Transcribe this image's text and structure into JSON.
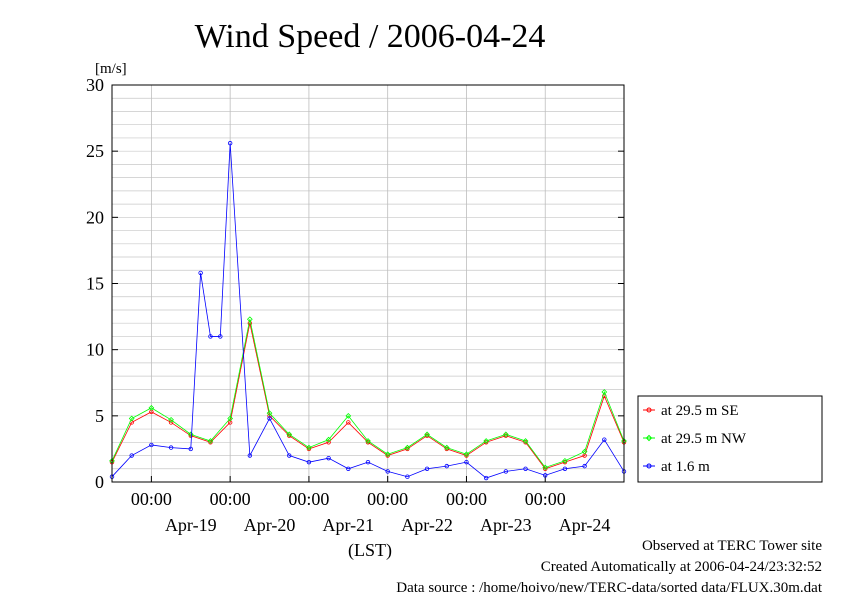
{
  "chart_data": {
    "type": "line",
    "title": "Wind Speed / 2006-04-24",
    "ylabel": "[m/s]",
    "xlabel": "(LST)",
    "ylim": [
      0,
      30
    ],
    "yticks": [
      0,
      5,
      10,
      15,
      20,
      25,
      30
    ],
    "xlim": [
      "2006-04-18T12:00",
      "2006-04-24T24:00"
    ],
    "time_tick_label": "00:00",
    "time_ticks": [
      "2006-04-19T00:00",
      "2006-04-20T00:00",
      "2006-04-21T00:00",
      "2006-04-22T00:00",
      "2006-04-23T00:00",
      "2006-04-24T00:00"
    ],
    "date_labels": [
      {
        "date": "2006-04-19T12:00",
        "label": "Apr-19"
      },
      {
        "date": "2006-04-20T12:00",
        "label": "Apr-20"
      },
      {
        "date": "2006-04-21T12:00",
        "label": "Apr-21"
      },
      {
        "date": "2006-04-22T12:00",
        "label": "Apr-22"
      },
      {
        "date": "2006-04-23T12:00",
        "label": "Apr-23"
      },
      {
        "date": "2006-04-24T12:00",
        "label": "Apr-24"
      }
    ],
    "grid": true,
    "legend_position": "right",
    "series": [
      {
        "name": "at 29.5 m SE",
        "color": "#ff0000",
        "marker": "circle",
        "x": [
          "2006-04-18T12:00",
          "2006-04-18T18:00",
          "2006-04-19T00:00",
          "2006-04-19T06:00",
          "2006-04-19T12:00",
          "2006-04-19T18:00",
          "2006-04-20T00:00",
          "2006-04-20T06:00",
          "2006-04-20T12:00",
          "2006-04-20T18:00",
          "2006-04-21T00:00",
          "2006-04-21T06:00",
          "2006-04-21T12:00",
          "2006-04-21T18:00",
          "2006-04-22T00:00",
          "2006-04-22T06:00",
          "2006-04-22T12:00",
          "2006-04-22T18:00",
          "2006-04-23T00:00",
          "2006-04-23T06:00",
          "2006-04-23T12:00",
          "2006-04-23T18:00",
          "2006-04-24T00:00",
          "2006-04-24T06:00",
          "2006-04-24T12:00",
          "2006-04-24T18:00",
          "2006-04-24T24:00"
        ],
        "values": [
          1.5,
          4.5,
          5.3,
          4.5,
          3.5,
          3.0,
          4.5,
          12.0,
          5.0,
          3.5,
          2.5,
          3.0,
          4.5,
          3.0,
          2.0,
          2.5,
          3.5,
          2.5,
          2.0,
          3.0,
          3.5,
          3.0,
          1.0,
          1.5,
          2.0,
          6.5,
          3.0
        ]
      },
      {
        "name": "at 29.5 m NW",
        "color": "#00ff00",
        "marker": "diamond",
        "x": [
          "2006-04-18T12:00",
          "2006-04-18T18:00",
          "2006-04-19T00:00",
          "2006-04-19T06:00",
          "2006-04-19T12:00",
          "2006-04-19T18:00",
          "2006-04-20T00:00",
          "2006-04-20T06:00",
          "2006-04-20T12:00",
          "2006-04-20T18:00",
          "2006-04-21T00:00",
          "2006-04-21T06:00",
          "2006-04-21T12:00",
          "2006-04-21T18:00",
          "2006-04-22T00:00",
          "2006-04-22T06:00",
          "2006-04-22T12:00",
          "2006-04-22T18:00",
          "2006-04-23T00:00",
          "2006-04-23T06:00",
          "2006-04-23T12:00",
          "2006-04-23T18:00",
          "2006-04-24T00:00",
          "2006-04-24T06:00",
          "2006-04-24T12:00",
          "2006-04-24T18:00",
          "2006-04-24T24:00"
        ],
        "values": [
          1.6,
          4.8,
          5.6,
          4.7,
          3.6,
          3.1,
          4.8,
          12.3,
          5.2,
          3.6,
          2.6,
          3.2,
          5.0,
          3.1,
          2.1,
          2.6,
          3.6,
          2.6,
          2.1,
          3.1,
          3.6,
          3.1,
          1.1,
          1.6,
          2.3,
          6.8,
          3.1
        ]
      },
      {
        "name": "at 1.6 m",
        "color": "#0000ff",
        "marker": "circle",
        "x": [
          "2006-04-18T12:00",
          "2006-04-18T18:00",
          "2006-04-19T00:00",
          "2006-04-19T06:00",
          "2006-04-19T12:00",
          "2006-04-19T15:00",
          "2006-04-19T18:00",
          "2006-04-19T21:00",
          "2006-04-20T00:00",
          "2006-04-20T06:00",
          "2006-04-20T12:00",
          "2006-04-20T18:00",
          "2006-04-21T00:00",
          "2006-04-21T06:00",
          "2006-04-21T12:00",
          "2006-04-21T18:00",
          "2006-04-22T00:00",
          "2006-04-22T06:00",
          "2006-04-22T12:00",
          "2006-04-22T18:00",
          "2006-04-23T00:00",
          "2006-04-23T06:00",
          "2006-04-23T12:00",
          "2006-04-23T18:00",
          "2006-04-24T00:00",
          "2006-04-24T06:00",
          "2006-04-24T12:00",
          "2006-04-24T18:00",
          "2006-04-24T24:00"
        ],
        "values": [
          0.4,
          2.0,
          2.8,
          2.6,
          2.5,
          15.8,
          11.0,
          11.0,
          25.6,
          2.0,
          4.8,
          2.0,
          1.5,
          1.8,
          1.0,
          1.5,
          0.8,
          0.4,
          1.0,
          1.2,
          1.5,
          0.3,
          0.8,
          1.0,
          0.5,
          1.0,
          1.2,
          3.2,
          0.8
        ]
      }
    ]
  },
  "footer": {
    "site": "Observed at TERC Tower site",
    "created": "Created Automatically at 2006-04-24/23:32:52",
    "source": "Data source : /home/hoivo/new/TERC-data/sorted  data/FLUX.30m.dat"
  }
}
